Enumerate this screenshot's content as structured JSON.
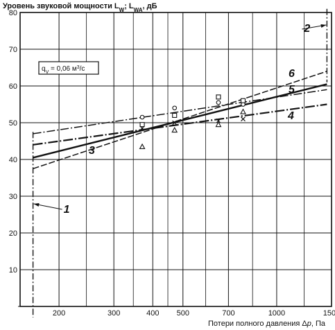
{
  "chart_data": {
    "type": "line",
    "title": "Уровень звуковой мощности L_W; L_WA, дБ",
    "ylabel": "Уровень звуковой мощности L_W; L_WA, дБ",
    "xlabel": "Потери полного давления Δp, Па",
    "xscale": "log",
    "xlim": [
      150,
      1500
    ],
    "ylim": [
      0,
      80
    ],
    "grid": true,
    "x_ticks": [
      "200",
      "300",
      "400",
      "500",
      "700",
      "1000",
      "1500"
    ],
    "x_tick_values": [
      200,
      300,
      400,
      500,
      700,
      1000,
      1500
    ],
    "y_ticks": [
      "10",
      "20",
      "30",
      "40",
      "50",
      "60",
      "70",
      "80"
    ],
    "y_tick_values": [
      10,
      20,
      30,
      40,
      50,
      60,
      70,
      80
    ],
    "annotation": "q_V = 0,06 м³/с",
    "lines": [
      {
        "name": "3",
        "style": "solid",
        "x": [
          165,
          1450
        ],
        "y": [
          40.5,
          60.5
        ]
      },
      {
        "name": "4",
        "style": "dashed",
        "x": [
          165,
          1450
        ],
        "y": [
          44,
          55
        ]
      },
      {
        "name": "5",
        "style": "dashed",
        "x": [
          165,
          1450
        ],
        "y": [
          47,
          59
        ]
      },
      {
        "name": "6",
        "style": "dashed",
        "x": [
          165,
          1450
        ],
        "y": [
          37.5,
          64
        ]
      }
    ],
    "markers": [
      {
        "symbol": "circle",
        "points": [
          [
            370,
            51.5
          ],
          [
            470,
            54
          ],
          [
            650,
            55.5
          ],
          [
            780,
            55
          ]
        ]
      },
      {
        "symbol": "square",
        "points": [
          [
            370,
            49.5
          ],
          [
            470,
            52
          ],
          [
            650,
            57
          ],
          [
            780,
            56
          ]
        ]
      },
      {
        "symbol": "triangle",
        "points": [
          [
            370,
            43.5
          ],
          [
            470,
            48
          ],
          [
            650,
            49.5
          ],
          [
            780,
            53
          ]
        ]
      },
      {
        "symbol": "cross",
        "points": [
          [
            370,
            48.5
          ],
          [
            470,
            50
          ],
          [
            650,
            50.5
          ],
          [
            780,
            51
          ]
        ]
      }
    ],
    "vlines": [
      {
        "name": "1",
        "x": 165
      },
      {
        "name": "2",
        "x": 1450
      }
    ]
  }
}
